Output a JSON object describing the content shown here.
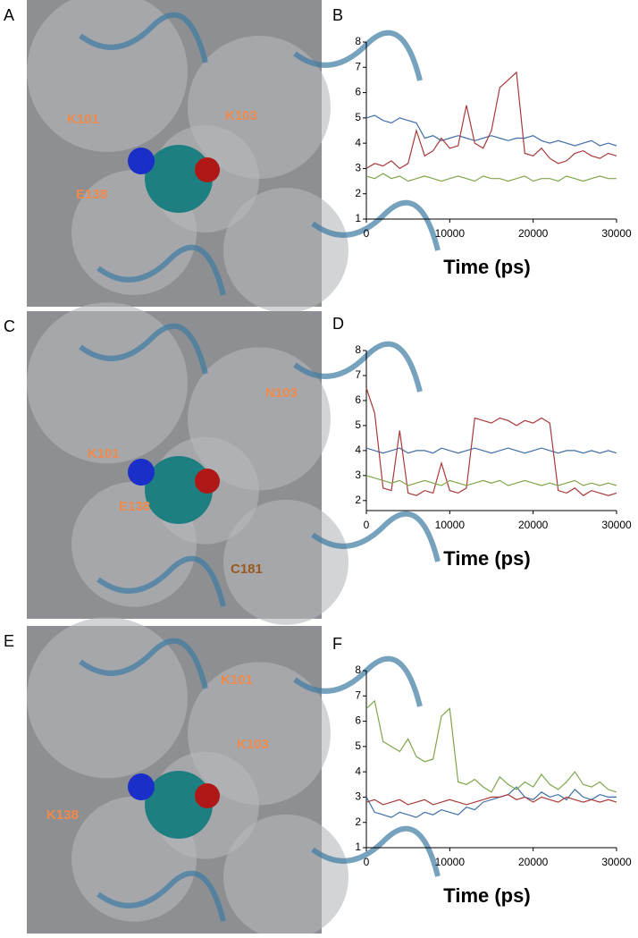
{
  "figure": {
    "panels": [
      {
        "letter": "A",
        "labels": [
          "K101",
          "K103",
          "E138"
        ]
      },
      {
        "letter": "C",
        "labels": [
          "N103",
          "K101",
          "E138",
          "C181"
        ]
      },
      {
        "letter": "E",
        "labels": [
          "K101",
          "K103",
          "K138"
        ]
      }
    ]
  },
  "chart_data": [
    {
      "type": "line",
      "panel": "B",
      "xlabel": "Time (ps)",
      "x": [
        0,
        1000,
        2000,
        3000,
        4000,
        5000,
        6000,
        7000,
        8000,
        9000,
        10000,
        11000,
        12000,
        13000,
        14000,
        15000,
        16000,
        17000,
        18000,
        19000,
        20000,
        21000,
        22000,
        23000,
        24000,
        25000,
        26000,
        27000,
        28000,
        29000,
        30000
      ],
      "xlim": [
        0,
        30000
      ],
      "xticks": [
        0,
        10000,
        20000,
        30000
      ],
      "ylim": [
        1,
        8
      ],
      "yticks": [
        1,
        2,
        3,
        4,
        5,
        6,
        7,
        8
      ],
      "series": [
        {
          "color": "#3f6fa8",
          "values": [
            5,
            5.1,
            4.9,
            4.8,
            5,
            4.9,
            4.8,
            4.2,
            4.3,
            4.1,
            4.2,
            4.3,
            4.2,
            4.1,
            4.2,
            4.3,
            4.2,
            4.1,
            4.2,
            4.2,
            4.3,
            4.1,
            4,
            4.1,
            4,
            3.9,
            4,
            4.1,
            3.9,
            4,
            3.9
          ]
        },
        {
          "color": "#a83a3a",
          "values": [
            3,
            3.2,
            3.1,
            3.3,
            3,
            3.2,
            4.5,
            3.5,
            3.7,
            4.2,
            3.8,
            3.9,
            5.5,
            4,
            3.8,
            4.5,
            6.2,
            6.5,
            6.8,
            3.6,
            3.5,
            3.8,
            3.4,
            3.2,
            3.3,
            3.6,
            3.7,
            3.5,
            3.4,
            3.6,
            3.5
          ]
        },
        {
          "color": "#7fa64a",
          "values": [
            2.7,
            2.6,
            2.8,
            2.6,
            2.7,
            2.5,
            2.6,
            2.7,
            2.6,
            2.5,
            2.6,
            2.7,
            2.6,
            2.5,
            2.7,
            2.6,
            2.6,
            2.5,
            2.6,
            2.7,
            2.5,
            2.6,
            2.6,
            2.5,
            2.7,
            2.6,
            2.5,
            2.6,
            2.7,
            2.6,
            2.6
          ]
        }
      ]
    },
    {
      "type": "line",
      "panel": "D",
      "xlabel": "Time (ps)",
      "x": [
        0,
        1000,
        2000,
        3000,
        4000,
        5000,
        6000,
        7000,
        8000,
        9000,
        10000,
        11000,
        12000,
        13000,
        14000,
        15000,
        16000,
        17000,
        18000,
        19000,
        20000,
        21000,
        22000,
        23000,
        24000,
        25000,
        26000,
        27000,
        28000,
        29000,
        30000
      ],
      "xlim": [
        0,
        30000
      ],
      "xticks": [
        0,
        10000,
        20000,
        30000
      ],
      "ylim": [
        1.6,
        8
      ],
      "yticks": [
        2,
        3,
        4,
        5,
        6,
        7,
        8
      ],
      "series": [
        {
          "color": "#3f6fa8",
          "values": [
            4.1,
            4,
            3.9,
            4,
            4.1,
            3.9,
            4,
            4,
            3.9,
            4.1,
            4,
            3.9,
            4,
            4.1,
            4,
            3.9,
            4,
            4.1,
            4,
            3.9,
            4,
            4.1,
            4,
            3.9,
            4,
            4,
            3.9,
            4,
            3.9,
            4,
            3.9
          ]
        },
        {
          "color": "#a83a3a",
          "values": [
            6.5,
            5.5,
            2.5,
            2.4,
            4.8,
            2.3,
            2.2,
            2.4,
            2.3,
            3.5,
            2.4,
            2.3,
            2.5,
            5.3,
            5.2,
            5.1,
            5.3,
            5.2,
            5,
            5.2,
            5.1,
            5.3,
            5.1,
            2.4,
            2.3,
            2.5,
            2.2,
            2.4,
            2.3,
            2.2,
            2.3
          ]
        },
        {
          "color": "#7fa64a",
          "values": [
            3,
            2.9,
            2.8,
            2.7,
            2.8,
            2.6,
            2.7,
            2.8,
            2.7,
            2.6,
            2.8,
            2.7,
            2.6,
            2.7,
            2.8,
            2.7,
            2.8,
            2.6,
            2.7,
            2.8,
            2.7,
            2.6,
            2.7,
            2.6,
            2.7,
            2.8,
            2.6,
            2.7,
            2.6,
            2.7,
            2.6
          ]
        }
      ]
    },
    {
      "type": "line",
      "panel": "F",
      "xlabel": "Time (ps)",
      "x": [
        0,
        1000,
        2000,
        3000,
        4000,
        5000,
        6000,
        7000,
        8000,
        9000,
        10000,
        11000,
        12000,
        13000,
        14000,
        15000,
        16000,
        17000,
        18000,
        19000,
        20000,
        21000,
        22000,
        23000,
        24000,
        25000,
        26000,
        27000,
        28000,
        29000,
        30000
      ],
      "xlim": [
        0,
        30000
      ],
      "xticks": [
        0,
        10000,
        20000,
        30000
      ],
      "ylim": [
        1,
        8
      ],
      "yticks": [
        1,
        2,
        3,
        4,
        5,
        6,
        7,
        8
      ],
      "series": [
        {
          "color": "#3f6fa8",
          "values": [
            3,
            2.4,
            2.3,
            2.2,
            2.4,
            2.3,
            2.2,
            2.4,
            2.3,
            2.5,
            2.4,
            2.3,
            2.6,
            2.5,
            2.8,
            2.9,
            3,
            3.1,
            3.4,
            3,
            2.9,
            3.2,
            3,
            3.1,
            2.9,
            3.3,
            3,
            2.9,
            3.1,
            3,
            3
          ]
        },
        {
          "color": "#a83a3a",
          "values": [
            2.8,
            2.9,
            2.7,
            2.8,
            2.9,
            2.7,
            2.8,
            2.9,
            2.7,
            2.8,
            2.9,
            2.8,
            2.7,
            2.8,
            2.9,
            3,
            3,
            3.1,
            2.9,
            3,
            2.8,
            3,
            2.9,
            2.8,
            3,
            2.9,
            2.8,
            2.9,
            2.8,
            2.9,
            2.8
          ]
        },
        {
          "color": "#7fa64a",
          "values": [
            6.5,
            6.8,
            5.2,
            5,
            4.8,
            5.3,
            4.6,
            4.4,
            4.5,
            6.2,
            6.5,
            3.6,
            3.5,
            3.7,
            3.4,
            3.2,
            3.8,
            3.5,
            3.3,
            3.6,
            3.4,
            3.9,
            3.5,
            3.3,
            3.6,
            4,
            3.5,
            3.4,
            3.6,
            3.3,
            3.2
          ]
        }
      ]
    }
  ]
}
